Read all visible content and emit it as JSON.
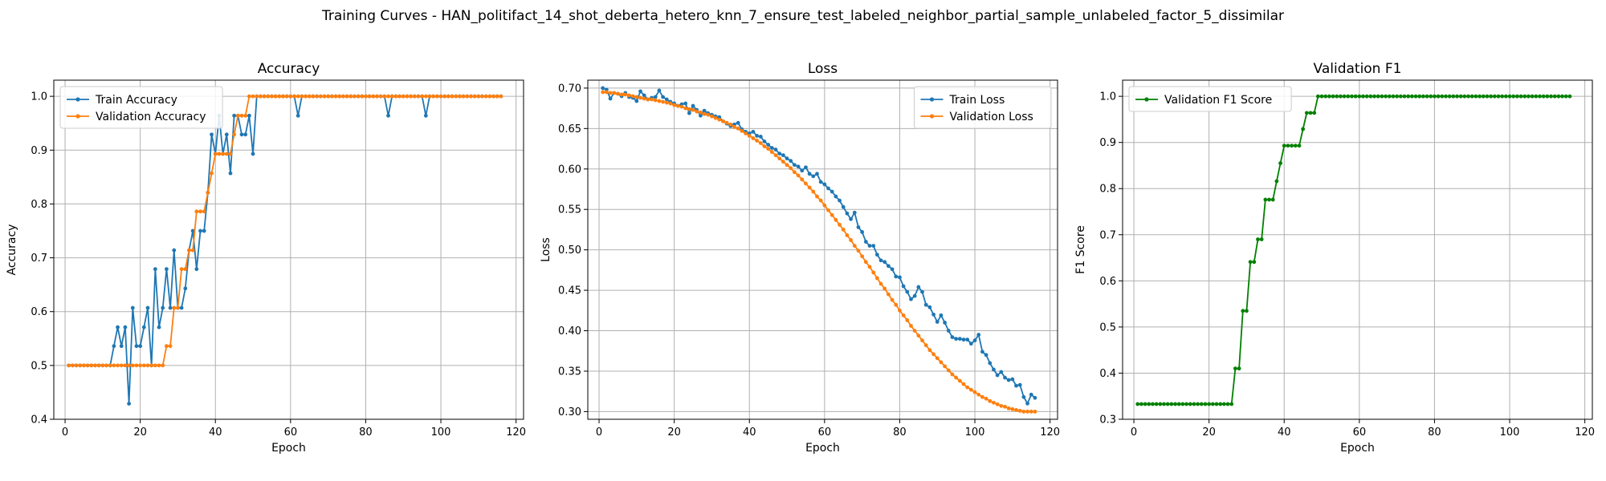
{
  "figure": {
    "title": "Training Curves - HAN_politifact_14_shot_deberta_hetero_knn_7_ensure_test_labeled_neighbor_partial_sample_unlabeled_factor_5_dissimilar"
  },
  "colors": {
    "train": "#1f77b4",
    "validation": "#ff7f0e",
    "f1": "#008000",
    "grid": "#b0b0b0"
  },
  "chart_data": [
    {
      "type": "line",
      "title": "Accuracy",
      "xlabel": "Epoch",
      "ylabel": "Accuracy",
      "xlim": [
        -3,
        122
      ],
      "ylim": [
        0.4,
        1.03
      ],
      "xticks": [
        0,
        20,
        40,
        60,
        80,
        100,
        120
      ],
      "yticks": [
        0.4,
        0.5,
        0.6,
        0.7,
        0.8,
        0.9,
        1.0
      ],
      "grid": true,
      "legend": "top-left",
      "x_start": 1,
      "series": [
        {
          "name": "Train Accuracy",
          "color": "#1f77b4",
          "values": [
            0.5,
            0.5,
            0.5,
            0.5,
            0.5,
            0.5,
            0.5,
            0.5,
            0.5,
            0.5,
            0.5,
            0.5,
            0.536,
            0.571,
            0.536,
            0.571,
            0.429,
            0.607,
            0.536,
            0.536,
            0.571,
            0.607,
            0.5,
            0.679,
            0.571,
            0.607,
            0.679,
            0.607,
            0.714,
            0.607,
            0.607,
            0.643,
            0.714,
            0.75,
            0.679,
            0.75,
            0.75,
            0.821,
            0.929,
            0.893,
            0.964,
            0.893,
            0.929,
            0.857,
            0.964,
            0.964,
            0.929,
            0.929,
            0.964,
            0.893,
            1,
            1,
            1,
            1,
            1,
            1,
            1,
            1,
            1,
            1,
            1,
            0.964,
            1,
            1,
            1,
            1,
            1,
            1,
            1,
            1,
            1,
            1,
            1,
            1,
            1,
            1,
            1,
            1,
            1,
            1,
            1,
            1,
            1,
            1,
            1,
            0.964,
            1,
            1,
            1,
            1,
            1,
            1,
            1,
            1,
            1,
            0.964,
            1,
            1,
            1,
            1,
            1,
            1,
            1,
            1,
            1,
            1,
            1,
            1,
            1,
            1,
            1,
            1,
            1,
            1,
            1,
            1
          ]
        },
        {
          "name": "Validation Accuracy",
          "color": "#ff7f0e",
          "values": [
            0.5,
            0.5,
            0.5,
            0.5,
            0.5,
            0.5,
            0.5,
            0.5,
            0.5,
            0.5,
            0.5,
            0.5,
            0.5,
            0.5,
            0.5,
            0.5,
            0.5,
            0.5,
            0.5,
            0.5,
            0.5,
            0.5,
            0.5,
            0.5,
            0.5,
            0.5,
            0.536,
            0.536,
            0.607,
            0.607,
            0.679,
            0.679,
            0.714,
            0.714,
            0.786,
            0.786,
            0.786,
            0.821,
            0.857,
            0.893,
            0.893,
            0.893,
            0.893,
            0.893,
            0.929,
            0.964,
            0.964,
            0.964,
            1,
            1,
            1,
            1,
            1,
            1,
            1,
            1,
            1,
            1,
            1,
            1,
            1,
            1,
            1,
            1,
            1,
            1,
            1,
            1,
            1,
            1,
            1,
            1,
            1,
            1,
            1,
            1,
            1,
            1,
            1,
            1,
            1,
            1,
            1,
            1,
            1,
            1,
            1,
            1,
            1,
            1,
            1,
            1,
            1,
            1,
            1,
            1,
            1,
            1,
            1,
            1,
            1,
            1,
            1,
            1,
            1,
            1,
            1,
            1,
            1,
            1,
            1,
            1,
            1,
            1,
            1,
            1
          ]
        }
      ]
    },
    {
      "type": "line",
      "title": "Loss",
      "xlabel": "Epoch",
      "ylabel": "Loss",
      "xlim": [
        -3,
        122
      ],
      "ylim": [
        0.2905,
        0.7098
      ],
      "xticks": [
        0,
        20,
        40,
        60,
        80,
        100,
        120
      ],
      "yticks": [
        0.3,
        0.35,
        0.4,
        0.45,
        0.5,
        0.55,
        0.6,
        0.65,
        0.7
      ],
      "grid": true,
      "legend": "top-right",
      "x_start": 1,
      "series": [
        {
          "name": "Train Loss",
          "color": "#1f77b4",
          "values": [
            0.7,
            0.698,
            0.687,
            0.694,
            0.693,
            0.69,
            0.694,
            0.689,
            0.688,
            0.684,
            0.696,
            0.691,
            0.686,
            0.688,
            0.689,
            0.697,
            0.689,
            0.686,
            0.683,
            0.681,
            0.678,
            0.68,
            0.681,
            0.669,
            0.678,
            0.673,
            0.666,
            0.672,
            0.669,
            0.667,
            0.665,
            0.664,
            0.659,
            0.656,
            0.653,
            0.655,
            0.657,
            0.649,
            0.646,
            0.644,
            0.646,
            0.641,
            0.64,
            0.634,
            0.63,
            0.626,
            0.624,
            0.619,
            0.617,
            0.613,
            0.61,
            0.605,
            0.603,
            0.598,
            0.602,
            0.594,
            0.591,
            0.594,
            0.584,
            0.581,
            0.576,
            0.572,
            0.566,
            0.561,
            0.553,
            0.545,
            0.538,
            0.546,
            0.528,
            0.522,
            0.51,
            0.505,
            0.505,
            0.494,
            0.487,
            0.485,
            0.48,
            0.476,
            0.467,
            0.466,
            0.455,
            0.448,
            0.439,
            0.443,
            0.454,
            0.448,
            0.432,
            0.429,
            0.42,
            0.411,
            0.419,
            0.41,
            0.4,
            0.392,
            0.39,
            0.39,
            0.389,
            0.389,
            0.384,
            0.388,
            0.395,
            0.374,
            0.37,
            0.36,
            0.352,
            0.345,
            0.349,
            0.342,
            0.339,
            0.34,
            0.332,
            0.333,
            0.318,
            0.31,
            0.321,
            0.317
          ]
        },
        {
          "name": "Validation Loss",
          "color": "#ff7f0e",
          "values": [
            0.695,
            0.695,
            0.694,
            0.694,
            0.693,
            0.692,
            0.692,
            0.691,
            0.69,
            0.689,
            0.688,
            0.687,
            0.686,
            0.686,
            0.685,
            0.684,
            0.683,
            0.682,
            0.681,
            0.679,
            0.678,
            0.677,
            0.675,
            0.674,
            0.673,
            0.671,
            0.67,
            0.668,
            0.667,
            0.665,
            0.663,
            0.661,
            0.659,
            0.657,
            0.655,
            0.652,
            0.65,
            0.647,
            0.644,
            0.641,
            0.638,
            0.635,
            0.632,
            0.628,
            0.625,
            0.621,
            0.617,
            0.613,
            0.609,
            0.605,
            0.601,
            0.596,
            0.592,
            0.587,
            0.582,
            0.577,
            0.572,
            0.566,
            0.561,
            0.555,
            0.549,
            0.543,
            0.537,
            0.531,
            0.525,
            0.518,
            0.512,
            0.505,
            0.499,
            0.492,
            0.485,
            0.479,
            0.472,
            0.465,
            0.458,
            0.452,
            0.445,
            0.438,
            0.432,
            0.425,
            0.419,
            0.413,
            0.406,
            0.4,
            0.394,
            0.388,
            0.382,
            0.376,
            0.371,
            0.366,
            0.361,
            0.356,
            0.351,
            0.346,
            0.342,
            0.338,
            0.334,
            0.33,
            0.327,
            0.324,
            0.321,
            0.318,
            0.316,
            0.313,
            0.311,
            0.309,
            0.307,
            0.306,
            0.304,
            0.303,
            0.302,
            0.301,
            0.3,
            0.3,
            0.3,
            0.3
          ]
        }
      ]
    },
    {
      "type": "line",
      "title": "Validation F1",
      "xlabel": "Epoch",
      "ylabel": "F1 Score",
      "xlim": [
        -3,
        122
      ],
      "ylim": [
        0.3,
        1.035
      ],
      "xticks": [
        0,
        20,
        40,
        60,
        80,
        100,
        120
      ],
      "yticks": [
        0.3,
        0.4,
        0.5,
        0.6,
        0.7,
        0.8,
        0.9,
        1.0
      ],
      "grid": true,
      "legend": "top-left",
      "x_start": 1,
      "series": [
        {
          "name": "Validation F1 Score",
          "color": "#008000",
          "values": [
            0.333,
            0.333,
            0.333,
            0.333,
            0.333,
            0.333,
            0.333,
            0.333,
            0.333,
            0.333,
            0.333,
            0.333,
            0.333,
            0.333,
            0.333,
            0.333,
            0.333,
            0.333,
            0.333,
            0.333,
            0.333,
            0.333,
            0.333,
            0.333,
            0.333,
            0.333,
            0.41,
            0.41,
            0.535,
            0.535,
            0.641,
            0.641,
            0.69,
            0.69,
            0.776,
            0.776,
            0.776,
            0.816,
            0.855,
            0.893,
            0.893,
            0.893,
            0.893,
            0.893,
            0.929,
            0.964,
            0.964,
            0.964,
            1,
            1,
            1,
            1,
            1,
            1,
            1,
            1,
            1,
            1,
            1,
            1,
            1,
            1,
            1,
            1,
            1,
            1,
            1,
            1,
            1,
            1,
            1,
            1,
            1,
            1,
            1,
            1,
            1,
            1,
            1,
            1,
            1,
            1,
            1,
            1,
            1,
            1,
            1,
            1,
            1,
            1,
            1,
            1,
            1,
            1,
            1,
            1,
            1,
            1,
            1,
            1,
            1,
            1,
            1,
            1,
            1,
            1,
            1,
            1,
            1,
            1,
            1,
            1,
            1,
            1,
            1,
            1
          ]
        }
      ]
    }
  ]
}
